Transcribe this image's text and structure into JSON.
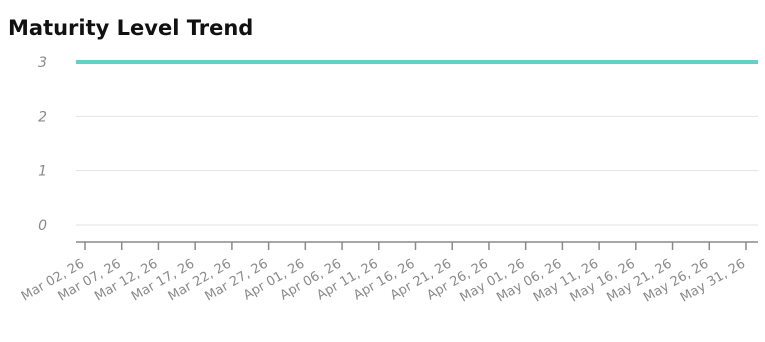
{
  "title": "Maturity Level Trend",
  "colors": {
    "series_line": "#5fd3c7",
    "gridline": "#e3e3e3",
    "axis": "#8a8a8a",
    "tick_label": "#8a8a8a",
    "title_text": "#111111"
  },
  "chart_data": {
    "type": "line",
    "title": "Maturity Level Trend",
    "xlabel": "",
    "ylabel": "",
    "ylim": [
      0,
      3
    ],
    "yticks": [
      0,
      1,
      2,
      3
    ],
    "grid": true,
    "legend": "none",
    "x": [
      "Mar 02, 26",
      "Mar 07, 26",
      "Mar 12, 26",
      "Mar 17, 26",
      "Mar 22, 26",
      "Mar 27, 26",
      "Apr 01, 26",
      "Apr 06, 26",
      "Apr 11, 26",
      "Apr 16, 26",
      "Apr 21, 26",
      "Apr 26, 26",
      "May 01, 26",
      "May 06, 26",
      "May 11, 26",
      "May 16, 26",
      "May 21, 26",
      "May 26, 26",
      "May 31, 26"
    ],
    "series": [
      {
        "values": [
          3,
          3,
          3,
          3,
          3,
          3,
          3,
          3,
          3,
          3,
          3,
          3,
          3,
          3,
          3,
          3,
          3,
          3,
          3
        ]
      }
    ]
  }
}
